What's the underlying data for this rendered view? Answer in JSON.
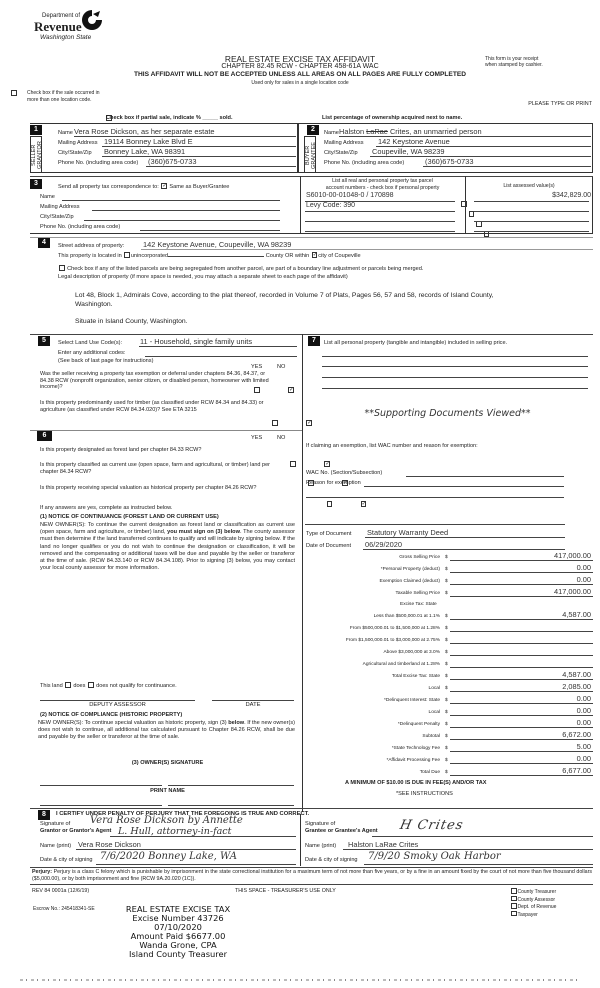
{
  "header": {
    "logo": {
      "line1": "Department of",
      "line2": "Revenue",
      "line3": "Washington State"
    },
    "title": "REAL ESTATE EXCISE TAX AFFIDAVIT",
    "chapter": "CHAPTER 82.45 RCW - CHAPTER 458-61A WAC",
    "receipt_note_1": "This form is your receipt",
    "receipt_note_2": "when stamped by cashier.",
    "warning": "THIS AFFIDAVIT WILL NOT BE ACCEPTED UNLESS ALL AREAS ON ALL PAGES ARE FULLY COMPLETED",
    "single_location": "Used only for sales in a single location code",
    "multi_location_1": "Check box if the sale occurred in",
    "multi_location_2": "more than one location code.",
    "please_type": "PLEASE TYPE OR PRINT",
    "partial_sale": "Check box if partial sale, indicate % _____ sold.",
    "ownership_note": "List percentage of ownership acquired next to name."
  },
  "seller": {
    "number": "1",
    "side_label": "SELLER GRANTOR",
    "name_label": "Name",
    "name": "Vera Rose Dickson, as her separate estate",
    "address_label": "Mailing Address",
    "address": "19114 Bonney Lake Blvd E",
    "city_label": "City/State/Zip",
    "city": "Bonney Lake, WA 98391",
    "phone_label": "Phone No. (including area code)",
    "phone": "(360)675-0733"
  },
  "buyer": {
    "number": "2",
    "side_label": "BUYER GRANTEE",
    "name_label": "Name",
    "name_first": "Halston",
    "name_struck": "LaRae",
    "name_rest": "Crites, an unmarried person",
    "address_label": "Mailing Address",
    "address": "142 Keystone Avenue",
    "city_label": "City/State/Zip",
    "city": "Coupeville, WA 98239",
    "phone_label": "Phone No. (including area code)",
    "phone": "(360)675-0733"
  },
  "section3": {
    "number": "3",
    "send_to": "Send all property tax correspondence to:",
    "same_as_buyer": "Same as Buyer/Grantee",
    "same_as_buyer_checked": true,
    "name_label": "Name",
    "address_label": "Mailing Address",
    "city_label": "City/State/Zip",
    "phone_label": "Phone No. (including area code)",
    "parcel_header_1": "List all real and personal property tax parcel",
    "parcel_header_2": "account numbers - check box if personal property",
    "assessed_header": "List assessed value(s)",
    "parcels": [
      "S6010-00-01048-0 / 170898",
      "Levy Code:  390",
      "",
      ""
    ],
    "assessed": [
      "$342,829.00",
      "",
      "",
      ""
    ]
  },
  "section4": {
    "number": "4",
    "street_label": "Street address of property:",
    "street": "142 Keystone Avenue, Coupeville, WA 98239",
    "located_pre": "This property is located in",
    "unincorporated": "unincorporated",
    "county_or": "County OR within",
    "city_of": "city of Coupeville",
    "segregated": "Check box if any of the listed parcels are being segregated from another parcel, are part of a boundary line adjustment or parcels being merged.",
    "legal_label": "Legal description of property (if more space is needed, you may attach a separate sheet to each page of the affidavit)",
    "legal_1": "Lot 48, Block 1, Admirals Cove, according to the plat thereof, recorded in Volume 7 of Plats, Pages 56, 57 and 58, records of Island County,",
    "legal_2": "Washington.",
    "legal_3": "Situate in Island County, Washington."
  },
  "section5": {
    "number": "5",
    "land_use_label": "Select Land Use Code(s):",
    "land_use": "11 - Household, single family units",
    "additional": "Enter any additional codes:",
    "see_back": "(See back of last page for instructions)",
    "yes": "YES",
    "no": "NO",
    "questions": [
      {
        "text": "Was the seller receiving a property tax exemption or deferral under chapters 84.36, 84.37, or 84.38 RCW (nonprofit organization, senior citizen, or disabled person, homeowner with limited income)?",
        "yes": false,
        "no": true
      },
      {
        "text": "Is this property predominantly used for timber (as classified under RCW 84.34 and 84.33) or agriculture (as classified under RCW 84.34.020)? See ETA 3215",
        "yes": false,
        "no": true
      }
    ]
  },
  "section6": {
    "number": "6",
    "yes": "YES",
    "no": "NO",
    "questions": [
      {
        "text": "Is this property designated as forest land per chapter 84.33 RCW?",
        "yes": false,
        "no": true
      },
      {
        "text": "Is this property classified as current use (open space, farm and agricultural, or timber) land per chapter 84.34 RCW?",
        "yes": false,
        "no": true
      },
      {
        "text": "Is this property receiving special valuation as historical property per chapter 84.26 RCW?",
        "yes": false,
        "no": true
      }
    ],
    "if_yes": "If any answers are yes, complete as instructed below.",
    "notice1_title": "(1) NOTICE OF CONTINUANCE (FOREST LAND OR CURRENT USE)",
    "notice1_a": "NEW OWNER(S): To continue the current designation as forest land or classification as current use (open space, farm and agriculture, or timber) land, ",
    "notice1_bold": "you must sign on (3) below",
    "notice1_b": ". The county assessor must then determine if the land transferred continues to qualify and will indicate by signing below. If the land no longer qualifies or you do not wish to continue the designation or classification, it will be removed and the compensating or additional taxes will be due and payable by the seller or transferor at the time of sale. (RCW 84.33.140 or RCW 84.34.108). Prior to signing (3) below, you may contact your local county assessor for more information.",
    "land_qualify": "This land",
    "does": "does",
    "does_not": "does not qualify for continuance.",
    "deputy_assessor": "DEPUTY ASSESSOR",
    "date": "DATE",
    "notice2_title": "(2) NOTICE OF COMPLIANCE (HISTORIC PROPERTY)",
    "notice2_a": "NEW OWNER(S): To continue special valuation as historic property, sign (3) ",
    "notice2_bold": "below",
    "notice2_b": ". If the new owner(s) does not wish to continue, all additional tax calculated pursuant to Chapter 84.26 RCW, shall be due and payable by the seller or transferor at the time of sale.",
    "owner_signature": "(3) OWNER(S) SIGNATURE",
    "print_name": "PRINT NAME"
  },
  "section7": {
    "number": "7",
    "personal_property": "List all personal property (tangible and intangible) included in selling price.",
    "supporting_docs": "**Supporting Documents Viewed**",
    "exemption_prompt": "If claiming an exemption, list WAC number and reason for exemption:",
    "wac_label": "WAC No. (Section/Subsection)",
    "reason_label": "Reason for exemption",
    "doc_type_label": "Type of Document",
    "doc_type": "Statutory Warranty Deed",
    "doc_date_label": "Date of Document",
    "doc_date": "06/29/2020"
  },
  "tax": {
    "rows": [
      {
        "label": "Gross Selling Price",
        "value": "417,000.00"
      },
      {
        "label": "*Personal Property (deduct)",
        "value": "0.00"
      },
      {
        "label": "Exemption Claimed (deduct)",
        "value": "0.00"
      },
      {
        "label": "Taxable Selling Price",
        "value": "417,000.00"
      },
      {
        "label": "Less than $500,000.01 at 1.1%",
        "value": "4,587.00"
      },
      {
        "label": "From $500,000.01 to $1,500,000 at 1.28%",
        "value": ""
      },
      {
        "label": "From $1,500,000.01 to $3,000,000 at 2.75%",
        "value": ""
      },
      {
        "label": "Above $3,000,000 at 3.0%",
        "value": ""
      },
      {
        "label": "Agricultural and timberland at 1.28%",
        "value": ""
      },
      {
        "label": "Total Excise Tax: State",
        "value": "4,587.00"
      },
      {
        "label": "Local",
        "value": "2,085.00"
      },
      {
        "label": "*Delinquent Interest: State",
        "value": "0.00"
      },
      {
        "label": "Local",
        "value": "0.00"
      },
      {
        "label": "*Delinquent Penalty",
        "value": "0.00"
      },
      {
        "label": "Subtotal",
        "value": "6,672.00"
      },
      {
        "label": "*State Technology Fee",
        "value": "5.00"
      },
      {
        "label": "*Affidavit Processing Fee",
        "value": "0.00"
      },
      {
        "label": "Total Due",
        "value": "6,677.00"
      }
    ],
    "excise_state_heading": "Excise Tax: State",
    "dollar": "$",
    "minimum": "A MINIMUM OF $10.00 IS DUE IN FEE(S) AND/OR TAX",
    "see_instructions": "*SEE INSTRUCTIONS"
  },
  "section8": {
    "number": "8",
    "certify": "I CERTIFY UNDER PENALTY OF PERJURY THAT THE FOREGOING IS TRUE AND CORRECT.",
    "grantor_sig_label_1": "Signature of",
    "grantor_sig_label_2": "Grantor or Grantor's Agent",
    "grantor_signature_1": "Vera Rose Dickson by Annette",
    "grantor_signature_2": "L. Hull, attorney-in-fact",
    "grantee_sig_label_1": "Signature of",
    "grantee_sig_label_2": "Grantee or Grantee's Agent",
    "grantee_signature": "H Crites",
    "name_print_label": "Name (print)",
    "grantor_name": "Vera Rose Dickson",
    "grantee_name": "Halston LaRae Crites",
    "date_city_label": "Date & city of signing",
    "grantor_date_city": "7/6/2020   Bonney Lake, WA",
    "grantee_date_city": "7/9/20  Smoky Oak Harbor",
    "perjury_bold": "Perjury:",
    "perjury": " Perjury is a class C felony which is punishable by imprisonment in the state correctional institution for a maximum term of not more than five years, or by a fine in an amount fixed by the court of not more than five thousand dollars ($5,000.00), or by both imprisonment and fine (RCW 9A.20.020 (1C))."
  },
  "footer": {
    "rev": "REV 84 0001a (12/6/19)",
    "treasurer_use": "THIS SPACE - TREASURER'S USE ONLY",
    "copies": [
      "County Treasurer",
      "County Assessor",
      "Dept. of Revenue",
      "Taxpayer"
    ],
    "escrow": "Escrow No.: 245418341-SE"
  },
  "stamp": {
    "line1": "REAL ESTATE EXCISE TAX",
    "line2": "Excise Number 43726",
    "line3": "07/10/2020",
    "line4": "Amount Paid $6677.00",
    "line5": "Wanda Grone, CPA",
    "line6": "Island County Treasurer"
  }
}
